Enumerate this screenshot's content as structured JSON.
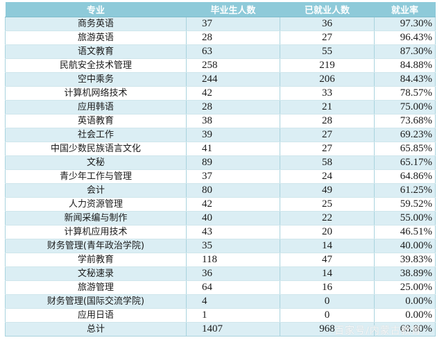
{
  "table": {
    "headers": [
      "专业",
      "毕业生人数",
      "已就业人数",
      "就业率"
    ],
    "rows": [
      {
        "major": "商务英语",
        "graduates": "37",
        "employed": "36",
        "rate": "97.30%"
      },
      {
        "major": "旅游英语",
        "graduates": "28",
        "employed": "27",
        "rate": "96.43%"
      },
      {
        "major": "语文教育",
        "graduates": "63",
        "employed": "55",
        "rate": "87.30%"
      },
      {
        "major": "民航安全技术管理",
        "graduates": "258",
        "employed": "219",
        "rate": "84.88%"
      },
      {
        "major": "空中乘务",
        "graduates": "244",
        "employed": "206",
        "rate": "84.43%"
      },
      {
        "major": "计算机网络技术",
        "graduates": "42",
        "employed": "33",
        "rate": "78.57%"
      },
      {
        "major": "应用韩语",
        "graduates": "28",
        "employed": "21",
        "rate": "75.00%"
      },
      {
        "major": "英语教育",
        "graduates": "38",
        "employed": "28",
        "rate": "73.68%"
      },
      {
        "major": "社会工作",
        "graduates": "39",
        "employed": "27",
        "rate": "69.23%"
      },
      {
        "major": "中国少数民族语言文化",
        "graduates": "41",
        "employed": "27",
        "rate": "65.85%"
      },
      {
        "major": "文秘",
        "graduates": "89",
        "employed": "58",
        "rate": "65.17%"
      },
      {
        "major": "青少年工作与管理",
        "graduates": "37",
        "employed": "24",
        "rate": "64.86%"
      },
      {
        "major": "会计",
        "graduates": "80",
        "employed": "49",
        "rate": "61.25%"
      },
      {
        "major": "人力资源管理",
        "graduates": "42",
        "employed": "25",
        "rate": "59.52%"
      },
      {
        "major": "新闻采编与制作",
        "graduates": "40",
        "employed": "22",
        "rate": "55.00%"
      },
      {
        "major": "计算机应用技术",
        "graduates": "43",
        "employed": "20",
        "rate": "46.51%"
      },
      {
        "major": "财务管理(青年政治学院)",
        "graduates": "35",
        "employed": "14",
        "rate": "40.00%"
      },
      {
        "major": "学前教育",
        "graduates": "118",
        "employed": "47",
        "rate": "39.83%"
      },
      {
        "major": "文秘速录",
        "graduates": "36",
        "employed": "14",
        "rate": "38.89%"
      },
      {
        "major": "旅游管理",
        "graduates": "64",
        "employed": "16",
        "rate": "25.00%"
      },
      {
        "major": "财务管理(国际交流学院)",
        "graduates": "4",
        "employed": "0",
        "rate": "0.00%"
      },
      {
        "major": "应用日语",
        "graduates": "1",
        "employed": "0",
        "rate": "0.00%"
      }
    ],
    "total": {
      "major": "总计",
      "graduates": "1407",
      "employed": "968",
      "rate": "68.80%"
    }
  },
  "watermark": "百家号/内蒙古教育",
  "colors": {
    "header_bg": "#8ecad9",
    "header_text": "#ffffff",
    "stripe_bg": "#dbeef4",
    "border": "#a9d3de"
  }
}
